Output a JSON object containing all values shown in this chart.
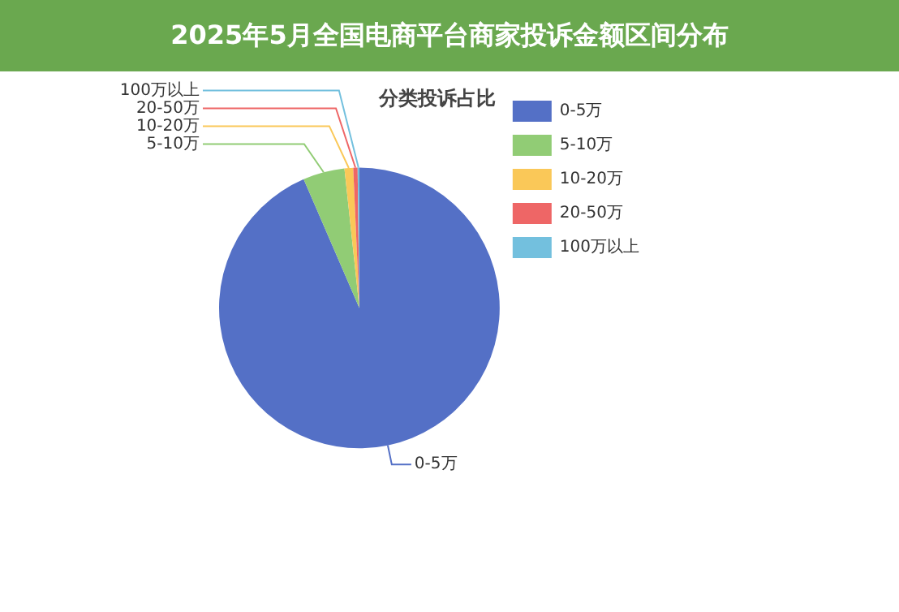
{
  "chart_data": {
    "type": "pie",
    "title": "2025年5月全国电商平台商家投诉金额区间分布",
    "subtitle": "分类投诉占比",
    "categories": [
      "0-5万",
      "5-10万",
      "10-20万",
      "20-50万",
      "100万以上"
    ],
    "values": [
      93.5,
      4.8,
      1.0,
      0.5,
      0.2
    ],
    "colors": [
      "#5470c6",
      "#91cc75",
      "#fac858",
      "#ee6666",
      "#73c0de"
    ],
    "legend": "top right"
  }
}
